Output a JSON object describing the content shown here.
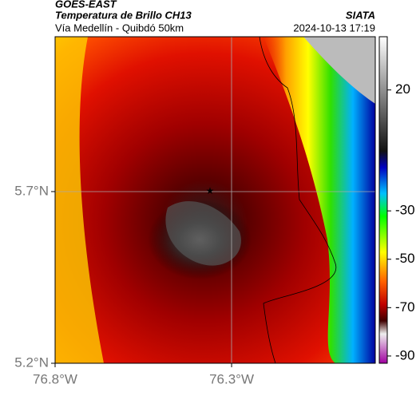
{
  "header": {
    "source": "GOES-EAST",
    "title": "Temperatura de Brillo CH13",
    "subtitle": "Vía Medellín - Quibdó 50km",
    "org": "SIATA",
    "datetime": "2024-10-13 17:19"
  },
  "map": {
    "lat_lim": [
      5.2,
      6.151
    ],
    "lon_lim": [
      -76.8,
      -75.893
    ],
    "lat_ticks": [
      {
        "value": 5.7,
        "label": "5.7°N"
      },
      {
        "value": 5.2,
        "label": "5.2°N"
      }
    ],
    "lon_ticks": [
      {
        "value": -76.8,
        "label": "76.8°W"
      },
      {
        "value": -76.3,
        "label": "76.3°W"
      }
    ],
    "colorbar": {
      "lim": [
        -93,
        42
      ],
      "ticks": [
        20,
        -30,
        -50,
        -70,
        -90
      ]
    }
  }
}
